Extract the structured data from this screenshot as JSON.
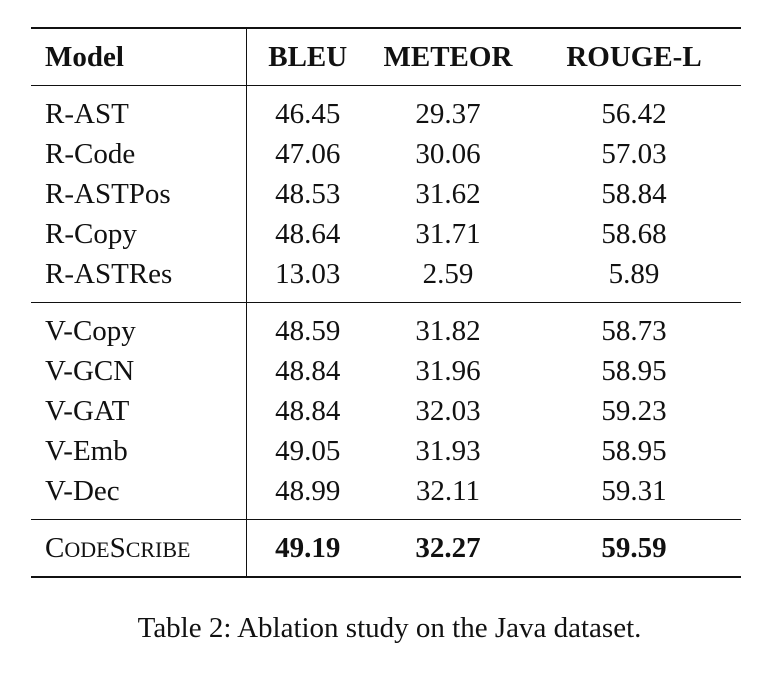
{
  "table": {
    "headers": [
      "Model",
      "BLEU",
      "METEOR",
      "ROUGE-L"
    ],
    "group1": [
      {
        "model": "R-AST",
        "bleu": "46.45",
        "meteor": "29.37",
        "rouge": "56.42"
      },
      {
        "model": "R-Code",
        "bleu": "47.06",
        "meteor": "30.06",
        "rouge": "57.03"
      },
      {
        "model": "R-ASTPos",
        "bleu": "48.53",
        "meteor": "31.62",
        "rouge": "58.84"
      },
      {
        "model": "R-Copy",
        "bleu": "48.64",
        "meteor": "31.71",
        "rouge": "58.68"
      },
      {
        "model": "R-ASTRes",
        "bleu": "13.03",
        "meteor": "2.59",
        "rouge": "5.89"
      }
    ],
    "group2": [
      {
        "model": "V-Copy",
        "bleu": "48.59",
        "meteor": "31.82",
        "rouge": "58.73"
      },
      {
        "model": "V-GCN",
        "bleu": "48.84",
        "meteor": "31.96",
        "rouge": "58.95"
      },
      {
        "model": "V-GAT",
        "bleu": "48.84",
        "meteor": "32.03",
        "rouge": "59.23"
      },
      {
        "model": "V-Emb",
        "bleu": "49.05",
        "meteor": "31.93",
        "rouge": "58.95"
      },
      {
        "model": "V-Dec",
        "bleu": "48.99",
        "meteor": "32.11",
        "rouge": "59.31"
      }
    ],
    "final": {
      "model_parts": [
        "C",
        "ODE",
        "S",
        "CRIBE"
      ],
      "bleu": "49.19",
      "meteor": "32.27",
      "rouge": "59.59"
    }
  },
  "caption": "Table 2: Ablation study on the Java dataset."
}
